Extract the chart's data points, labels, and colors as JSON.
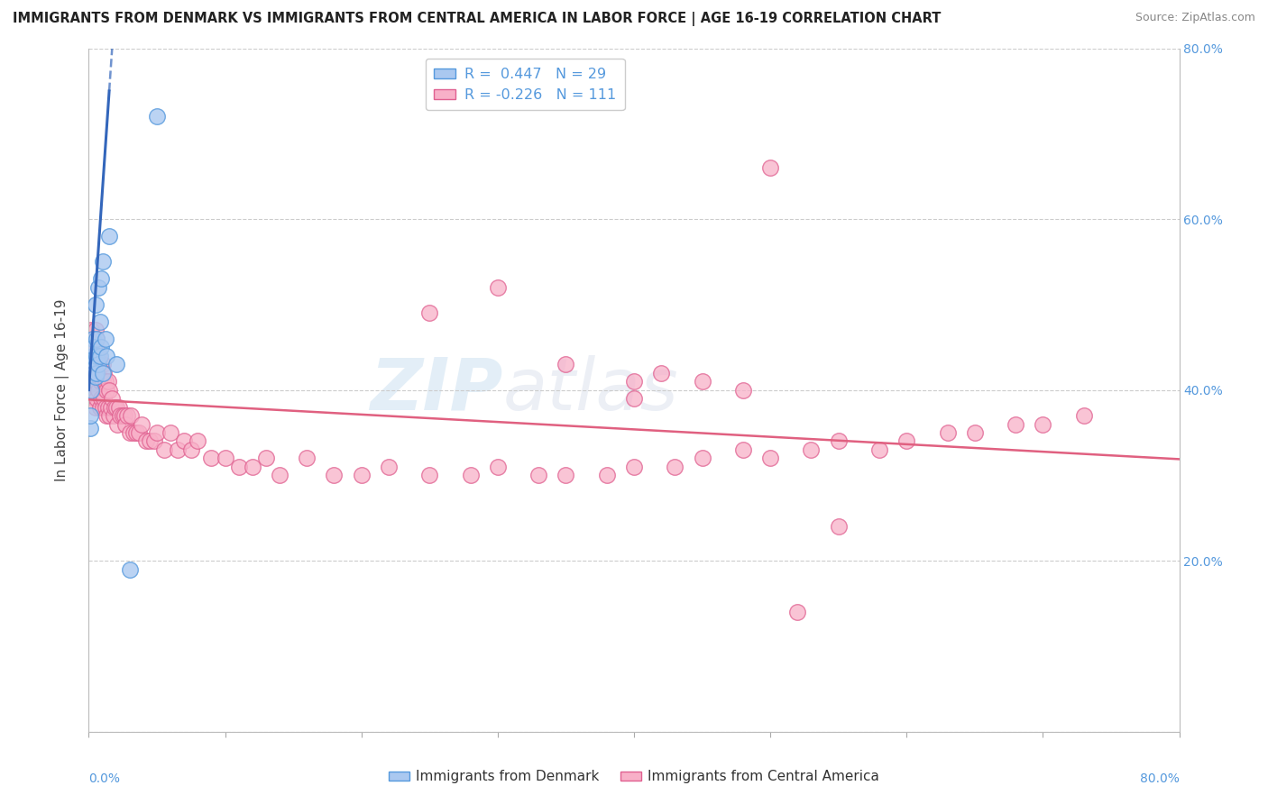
{
  "title": "IMMIGRANTS FROM DENMARK VS IMMIGRANTS FROM CENTRAL AMERICA IN LABOR FORCE | AGE 16-19 CORRELATION CHART",
  "source": "Source: ZipAtlas.com",
  "ylabel": "In Labor Force | Age 16-19",
  "denmark_color": "#aac8f0",
  "denmark_edge": "#5599dd",
  "central_america_color": "#f8b0c8",
  "central_america_edge": "#e06090",
  "denmark_R": 0.447,
  "denmark_N": 29,
  "central_america_R": -0.226,
  "central_america_N": 111,
  "denmark_line_color": "#3366bb",
  "central_america_line_color": "#e06080",
  "watermark_color": "#ccddf0",
  "tick_color": "#5599dd",
  "xlim": [
    0.0,
    0.8
  ],
  "ylim": [
    0.0,
    0.8
  ],
  "denmark_x": [
    0.001,
    0.001,
    0.002,
    0.002,
    0.003,
    0.003,
    0.003,
    0.004,
    0.004,
    0.005,
    0.005,
    0.005,
    0.006,
    0.006,
    0.006,
    0.007,
    0.007,
    0.008,
    0.008,
    0.009,
    0.009,
    0.01,
    0.01,
    0.012,
    0.013,
    0.015,
    0.02,
    0.03,
    0.05
  ],
  "denmark_y": [
    0.355,
    0.37,
    0.4,
    0.425,
    0.43,
    0.44,
    0.46,
    0.42,
    0.45,
    0.415,
    0.435,
    0.5,
    0.42,
    0.44,
    0.46,
    0.43,
    0.52,
    0.44,
    0.48,
    0.45,
    0.53,
    0.55,
    0.42,
    0.46,
    0.44,
    0.58,
    0.43,
    0.19,
    0.72
  ],
  "central_america_x": [
    0.001,
    0.001,
    0.002,
    0.002,
    0.002,
    0.003,
    0.003,
    0.003,
    0.004,
    0.004,
    0.004,
    0.004,
    0.005,
    0.005,
    0.005,
    0.005,
    0.005,
    0.006,
    0.006,
    0.006,
    0.006,
    0.007,
    0.007,
    0.007,
    0.008,
    0.008,
    0.008,
    0.009,
    0.009,
    0.01,
    0.01,
    0.01,
    0.011,
    0.011,
    0.012,
    0.012,
    0.013,
    0.013,
    0.014,
    0.014,
    0.015,
    0.015,
    0.016,
    0.017,
    0.018,
    0.019,
    0.02,
    0.021,
    0.022,
    0.023,
    0.025,
    0.026,
    0.027,
    0.028,
    0.03,
    0.031,
    0.033,
    0.035,
    0.037,
    0.039,
    0.042,
    0.045,
    0.048,
    0.05,
    0.055,
    0.06,
    0.065,
    0.07,
    0.075,
    0.08,
    0.09,
    0.1,
    0.11,
    0.12,
    0.13,
    0.14,
    0.16,
    0.18,
    0.2,
    0.22,
    0.25,
    0.28,
    0.3,
    0.33,
    0.35,
    0.38,
    0.4,
    0.43,
    0.45,
    0.48,
    0.5,
    0.53,
    0.55,
    0.58,
    0.6,
    0.63,
    0.65,
    0.68,
    0.7,
    0.73,
    0.25,
    0.3,
    0.35,
    0.4,
    0.4,
    0.42,
    0.45,
    0.48,
    0.5,
    0.52,
    0.55
  ],
  "central_america_y": [
    0.43,
    0.46,
    0.4,
    0.44,
    0.47,
    0.41,
    0.43,
    0.46,
    0.39,
    0.42,
    0.44,
    0.46,
    0.38,
    0.41,
    0.43,
    0.45,
    0.47,
    0.39,
    0.42,
    0.44,
    0.46,
    0.4,
    0.42,
    0.44,
    0.38,
    0.41,
    0.43,
    0.39,
    0.41,
    0.38,
    0.41,
    0.43,
    0.39,
    0.42,
    0.38,
    0.41,
    0.37,
    0.4,
    0.38,
    0.41,
    0.37,
    0.4,
    0.38,
    0.39,
    0.37,
    0.38,
    0.38,
    0.36,
    0.38,
    0.37,
    0.37,
    0.37,
    0.36,
    0.37,
    0.35,
    0.37,
    0.35,
    0.35,
    0.35,
    0.36,
    0.34,
    0.34,
    0.34,
    0.35,
    0.33,
    0.35,
    0.33,
    0.34,
    0.33,
    0.34,
    0.32,
    0.32,
    0.31,
    0.31,
    0.32,
    0.3,
    0.32,
    0.3,
    0.3,
    0.31,
    0.3,
    0.3,
    0.31,
    0.3,
    0.3,
    0.3,
    0.31,
    0.31,
    0.32,
    0.33,
    0.32,
    0.33,
    0.34,
    0.33,
    0.34,
    0.35,
    0.35,
    0.36,
    0.36,
    0.37,
    0.49,
    0.52,
    0.43,
    0.41,
    0.39,
    0.42,
    0.41,
    0.4,
    0.66,
    0.14,
    0.24
  ]
}
